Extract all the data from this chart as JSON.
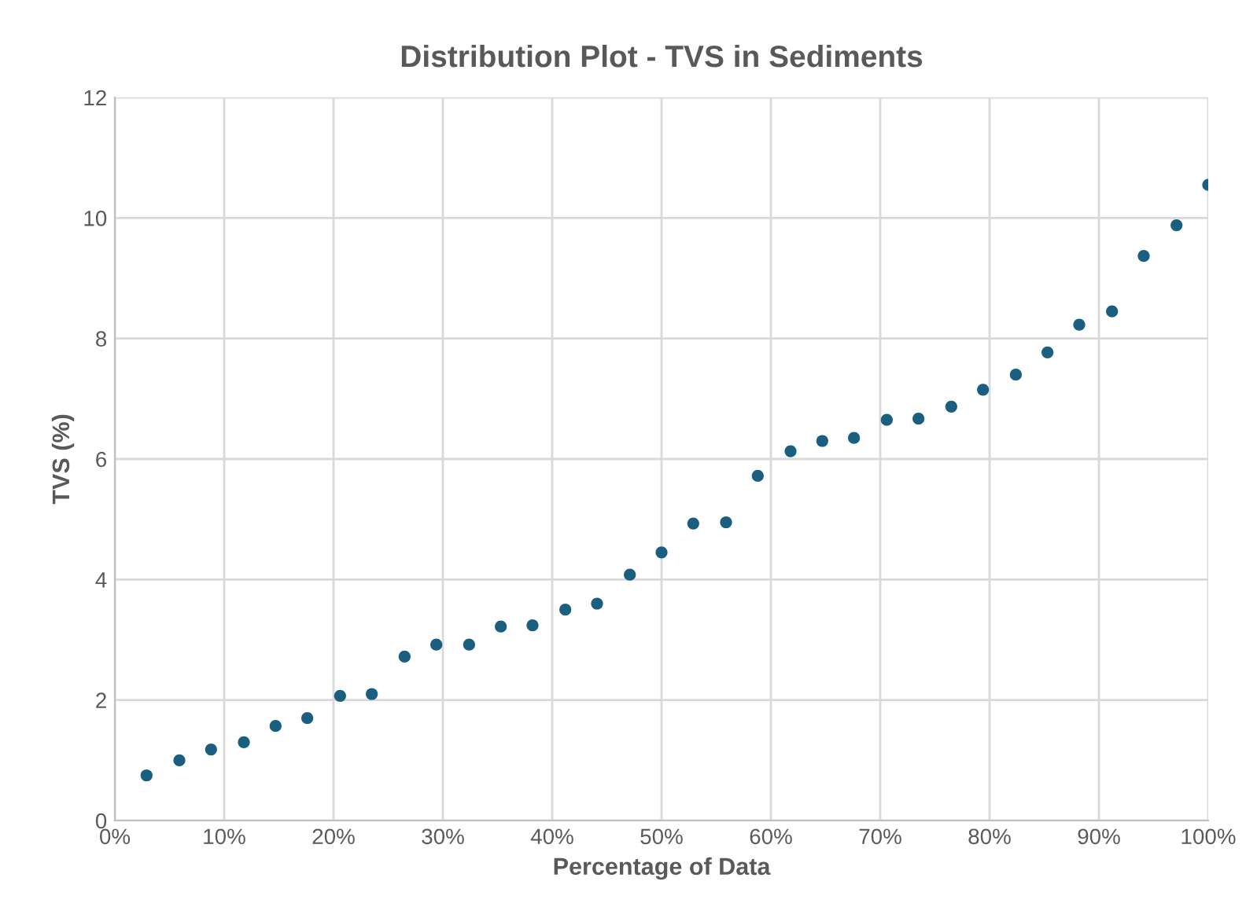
{
  "chart_data": {
    "type": "scatter",
    "title": "Distribution Plot - TVS in Sediments",
    "xlabel": "Percentage of Data",
    "ylabel": "TVS (%)",
    "x": [
      2.9,
      5.9,
      8.8,
      11.8,
      14.7,
      17.6,
      20.6,
      23.5,
      26.5,
      29.4,
      32.4,
      35.3,
      38.2,
      41.2,
      44.1,
      47.1,
      50.0,
      52.9,
      55.9,
      58.8,
      61.8,
      64.7,
      67.6,
      70.6,
      73.5,
      76.5,
      79.4,
      82.4,
      85.3,
      88.2,
      91.2,
      94.1,
      97.1,
      100.0
    ],
    "series": [
      {
        "color": "#1a5e80",
        "values": [
          0.75,
          1.0,
          1.18,
          1.3,
          1.57,
          1.7,
          2.07,
          2.1,
          2.72,
          2.92,
          2.92,
          3.22,
          3.24,
          3.5,
          3.6,
          4.08,
          4.45,
          4.93,
          4.95,
          5.72,
          6.13,
          6.3,
          6.35,
          6.65,
          6.67,
          6.87,
          7.15,
          7.4,
          7.77,
          8.23,
          8.45,
          9.37,
          9.88,
          10.55
        ]
      }
    ],
    "xlim": [
      0,
      100
    ],
    "ylim": [
      0,
      12
    ],
    "xticks": [
      {
        "value": 0,
        "label": "0%"
      },
      {
        "value": 10,
        "label": "10%"
      },
      {
        "value": 20,
        "label": "20%"
      },
      {
        "value": 30,
        "label": "30%"
      },
      {
        "value": 40,
        "label": "40%"
      },
      {
        "value": 50,
        "label": "50%"
      },
      {
        "value": 60,
        "label": "60%"
      },
      {
        "value": 70,
        "label": "70%"
      },
      {
        "value": 80,
        "label": "80%"
      },
      {
        "value": 90,
        "label": "90%"
      },
      {
        "value": 100,
        "label": "100%"
      }
    ],
    "yticks": [
      0,
      2,
      4,
      6,
      8,
      10,
      12
    ],
    "grid": true,
    "marker": "circle",
    "legend": false
  }
}
